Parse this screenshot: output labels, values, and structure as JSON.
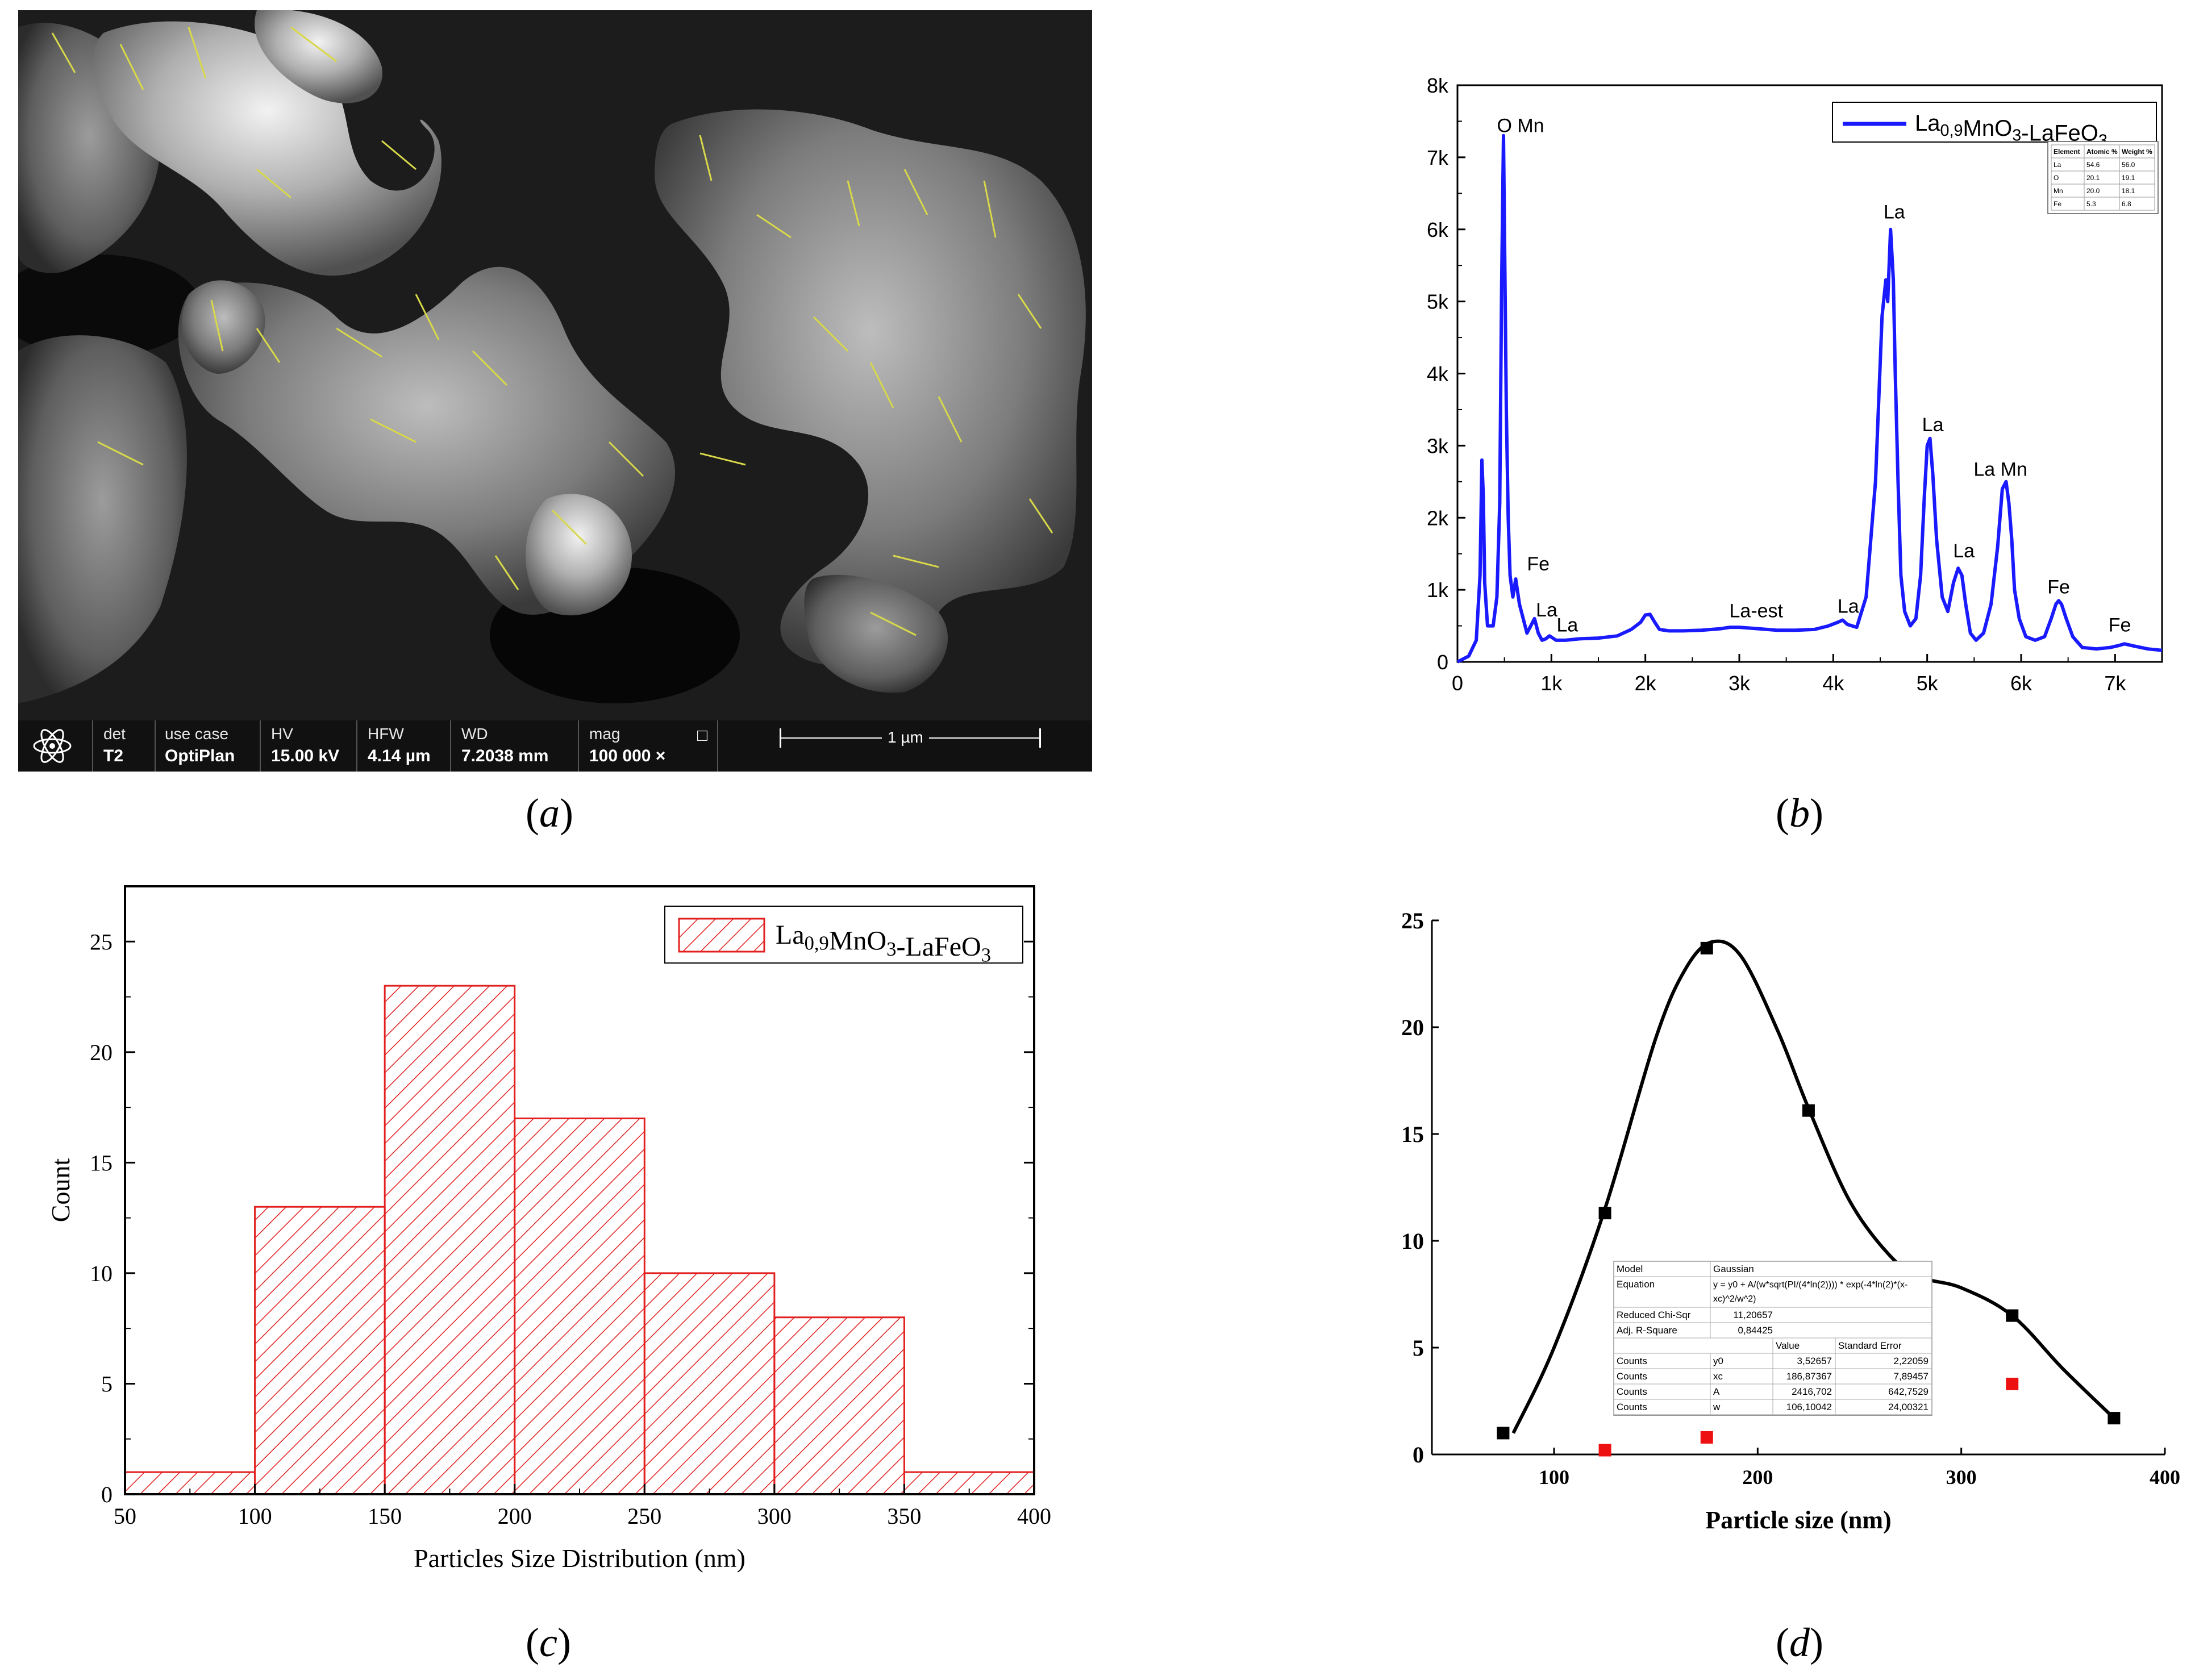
{
  "panels": {
    "a": {
      "caption_letter": "a",
      "info_bar": {
        "fields": [
          {
            "label": "det",
            "value": "T2"
          },
          {
            "label": "use case",
            "value": "OptiPlan"
          },
          {
            "label": "HV",
            "value": "15.00 kV"
          },
          {
            "label": "HFW",
            "value": "4.14 µm"
          },
          {
            "label": "WD",
            "value": "7.2038 mm"
          },
          {
            "label": "mag",
            "value": "100 000 ×"
          }
        ],
        "mag_box_symbol": "□",
        "scale_label": "1 µm"
      }
    },
    "b": {
      "caption_letter": "b"
    },
    "c": {
      "caption_letter": "c"
    },
    "d": {
      "caption_letter": "d"
    }
  },
  "chart_data": [
    {
      "panel": "b",
      "type": "line",
      "x_ticks": [
        "0",
        "1k",
        "2k",
        "3k",
        "4k",
        "5k",
        "6k",
        "7k"
      ],
      "y_ticks": [
        "0",
        "1k",
        "2k",
        "3k",
        "4k",
        "5k",
        "6k",
        "7k",
        "8k"
      ],
      "xlim": [
        0,
        7500
      ],
      "ylim": [
        0,
        8000
      ],
      "line_color": "#1a1aff",
      "series": [
        {
          "name": "La0,9MnO3-LaFeO3",
          "x": [
            0,
            120,
            200,
            240,
            260,
            275,
            290,
            320,
            380,
            420,
            450,
            470,
            490,
            505,
            520,
            540,
            560,
            590,
            620,
            660,
            700,
            740,
            780,
            820,
            860,
            900,
            940,
            980,
            1050,
            1150,
            1300,
            1500,
            1700,
            1850,
            1950,
            2000,
            2050,
            2100,
            2150,
            2250,
            2400,
            2600,
            2800,
            2900,
            3000,
            3200,
            3400,
            3600,
            3800,
            3950,
            4050,
            4100,
            4150,
            4250,
            4350,
            4450,
            4520,
            4560,
            4580,
            4610,
            4640,
            4660,
            4690,
            4720,
            4760,
            4820,
            4880,
            4930,
            4970,
            5000,
            5030,
            5060,
            5100,
            5160,
            5220,
            5280,
            5330,
            5370,
            5410,
            5460,
            5520,
            5600,
            5680,
            5750,
            5800,
            5840,
            5870,
            5900,
            5930,
            5980,
            6050,
            6150,
            6250,
            6320,
            6370,
            6400,
            6430,
            6480,
            6550,
            6650,
            6800,
            6950,
            7050,
            7100,
            7200,
            7350,
            7500
          ],
          "y": [
            0,
            80,
            300,
            1200,
            2800,
            2300,
            1100,
            500,
            500,
            900,
            2200,
            5200,
            7300,
            5400,
            3500,
            2000,
            1200,
            900,
            1150,
            800,
            600,
            400,
            500,
            600,
            400,
            300,
            320,
            360,
            300,
            300,
            320,
            330,
            360,
            450,
            550,
            650,
            660,
            550,
            450,
            430,
            430,
            440,
            460,
            480,
            480,
            460,
            440,
            440,
            450,
            500,
            550,
            580,
            520,
            480,
            900,
            2500,
            4800,
            5300,
            5000,
            6000,
            5300,
            4000,
            2500,
            1200,
            700,
            500,
            600,
            1200,
            2300,
            3000,
            3100,
            2600,
            1700,
            900,
            700,
            1100,
            1300,
            1200,
            800,
            400,
            300,
            400,
            800,
            1600,
            2400,
            2500,
            2200,
            1700,
            1000,
            600,
            350,
            300,
            350,
            600,
            800,
            850,
            800,
            600,
            350,
            200,
            180,
            200,
            230,
            250,
            220,
            180,
            160
          ]
        }
      ],
      "peak_labels": [
        {
          "text": "O",
          "x": 500,
          "y": 7350
        },
        {
          "text": "Mn",
          "x": 780,
          "y": 7350
        },
        {
          "text": "Fe",
          "x": 860,
          "y": 1270
        },
        {
          "text": "La",
          "x": 950,
          "y": 630
        },
        {
          "text": "La",
          "x": 1170,
          "y": 420
        },
        {
          "text": "La-est",
          "x": 3180,
          "y": 620
        },
        {
          "text": "La",
          "x": 4160,
          "y": 680
        },
        {
          "text": "La",
          "x": 4650,
          "y": 6150
        },
        {
          "text": "La",
          "x": 5060,
          "y": 3200
        },
        {
          "text": "La",
          "x": 5390,
          "y": 1450
        },
        {
          "text": "La Mn",
          "x": 5780,
          "y": 2580
        },
        {
          "text": "Fe",
          "x": 6400,
          "y": 950
        },
        {
          "text": "Fe",
          "x": 7050,
          "y": 420
        }
      ],
      "legend": {
        "position": "top-right",
        "label_main": "La",
        "label_sub": "0,9",
        "label_rest": "MnO",
        "label_sub2": "3",
        "label_end": "-LaFeO",
        "label_sub3": "3"
      },
      "inset_table": {
        "headers": [
          "Element",
          "Atomic %",
          "Weight %"
        ],
        "rows": [
          [
            "La",
            "54.6",
            "56.0"
          ],
          [
            "O",
            "20.1",
            "19.1"
          ],
          [
            "Mn",
            "20.0",
            "18.1"
          ],
          [
            "Fe",
            "5.3",
            "6.8"
          ]
        ]
      }
    },
    {
      "panel": "c",
      "type": "bar",
      "bin_edges": [
        50,
        100,
        150,
        200,
        250,
        300,
        350,
        400
      ],
      "values": [
        1,
        13,
        23,
        17,
        10,
        8,
        1
      ],
      "x_ticks": [
        "50",
        "100",
        "150",
        "200",
        "250",
        "300",
        "350",
        "400"
      ],
      "y_ticks": [
        "0",
        "5",
        "10",
        "15",
        "20",
        "25"
      ],
      "xlim": [
        50,
        400
      ],
      "ylim": [
        0,
        27.5
      ],
      "xlabel": "Particles Size Distribution (nm)",
      "ylabel": "Count",
      "bar_color": "#e32020",
      "legend": {
        "position": "top-right",
        "label_main": "La",
        "label_sub": "0,9",
        "label_rest": "MnO",
        "label_sub2": "3",
        "label_end": "-LaFeO",
        "label_sub3": "3"
      }
    },
    {
      "panel": "d",
      "type": "scatter",
      "xlabel": "Particle size (nm)",
      "x_ticks": [
        "100",
        "200",
        "300",
        "400"
      ],
      "y_ticks": [
        "0",
        "5",
        "10",
        "15",
        "20",
        "25"
      ],
      "xlim": [
        40,
        400
      ],
      "ylim": [
        0,
        25
      ],
      "series": [
        {
          "color": "#000000",
          "x": [
            75,
            125,
            175,
            225,
            275,
            325,
            375
          ],
          "y": [
            1,
            11.3,
            23.7,
            16.1,
            8.4,
            6.5,
            1.7
          ]
        },
        {
          "color": "#ee1111",
          "x": [
            125,
            175,
            275,
            325
          ],
          "y": [
            0.2,
            0.8,
            2.3,
            3.3
          ]
        }
      ],
      "curve": {
        "color": "#000000",
        "x": [
          80,
          100,
          125,
          150,
          165,
          178,
          192,
          210,
          225,
          245,
          265,
          280,
          300,
          325,
          350,
          375
        ],
        "y": [
          1,
          5,
          11.5,
          19.5,
          22.8,
          24,
          23.3,
          19.8,
          16.2,
          11.9,
          9.3,
          8.3,
          7.8,
          6.5,
          4,
          1.7
        ]
      },
      "fit_table": {
        "rows": [
          [
            "Model",
            "Gaussian",
            ""
          ],
          [
            "Equation",
            "y = y0 + A/(w*sqrt(PI/(4*ln(2)))) * exp(-4*ln(2)*(x-xc)^2/w^2)",
            ""
          ],
          [
            "Reduced Chi-Sqr",
            "11,20657",
            ""
          ],
          [
            "Adj. R-Square",
            "0,84425",
            ""
          ],
          [
            "",
            "Value",
            "Standard Error"
          ],
          [
            "Counts",
            "y0",
            "3,52657",
            "2,22059"
          ],
          [
            "Counts",
            "xc",
            "186,87367",
            "7,89457"
          ],
          [
            "Counts",
            "A",
            "2416,702",
            "642,7529"
          ],
          [
            "Counts",
            "w",
            "106,10042",
            "24,00321"
          ]
        ]
      }
    }
  ]
}
